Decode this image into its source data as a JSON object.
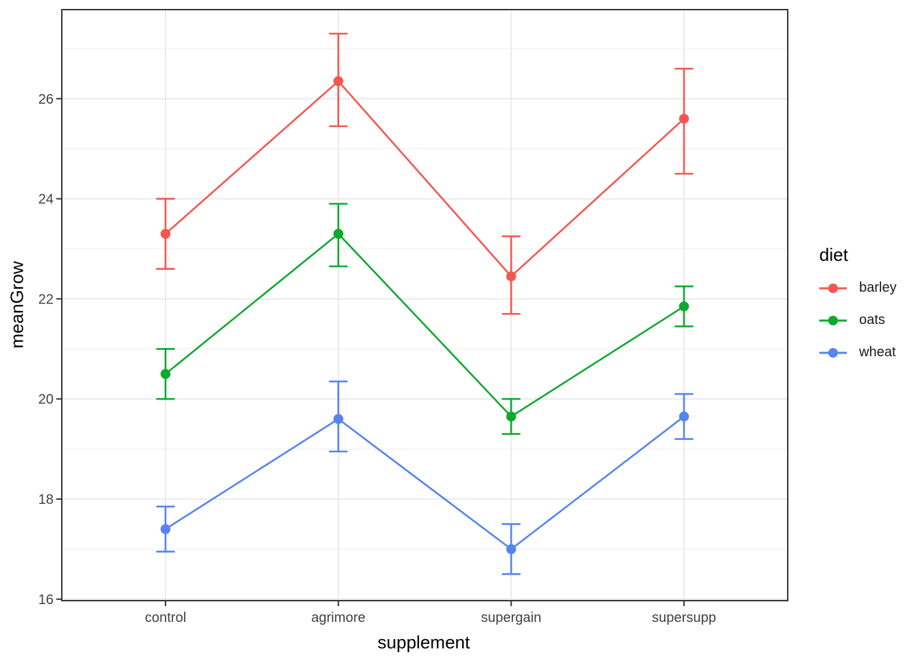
{
  "figure": {
    "background": "#ffffff"
  },
  "chart_data": {
    "type": "line",
    "title": "",
    "xlabel": "supplement",
    "ylabel": "meanGrow",
    "categories": [
      "control",
      "agrimore",
      "supergain",
      "supersupp"
    ],
    "series": [
      {
        "name": "barley",
        "color": "#F3574F",
        "values": [
          23.3,
          26.35,
          22.45,
          25.6
        ],
        "lower": [
          22.6,
          25.45,
          21.7,
          24.5
        ],
        "upper": [
          24.0,
          27.3,
          23.25,
          26.6
        ]
      },
      {
        "name": "oats",
        "color": "#0DA92E",
        "values": [
          20.5,
          23.3,
          19.65,
          21.85
        ],
        "lower": [
          20.0,
          22.65,
          19.3,
          21.45
        ],
        "upper": [
          21.0,
          23.9,
          20.0,
          22.25
        ]
      },
      {
        "name": "wheat",
        "color": "#5584F2",
        "values": [
          17.4,
          19.6,
          17.0,
          19.65
        ],
        "lower": [
          16.95,
          18.95,
          16.5,
          19.2
        ],
        "upper": [
          17.85,
          20.35,
          17.5,
          20.1
        ]
      }
    ],
    "has_error_bars": true,
    "marker": "circle",
    "y_axis": {
      "ticks": [
        16,
        18,
        20,
        22,
        24,
        26
      ],
      "minor_ticks": [
        17,
        19,
        21,
        23,
        25,
        27
      ],
      "range": [
        15.97,
        27.78
      ]
    },
    "x_axis": {
      "type": "categorical",
      "tick_labels": [
        "control",
        "agrimore",
        "supergain",
        "supersupp"
      ]
    },
    "legend": {
      "title": "diet",
      "position": "right",
      "entries": [
        "barley",
        "oats",
        "wheat"
      ]
    },
    "grid": {
      "show": true,
      "major_color": "#E8E8E8",
      "minor_color": "#F1F1F1"
    },
    "panel": {
      "background": "#FFFFFF",
      "border_color": "#333333",
      "tick_color": "#333333",
      "tick_label_color": "#404040"
    }
  }
}
